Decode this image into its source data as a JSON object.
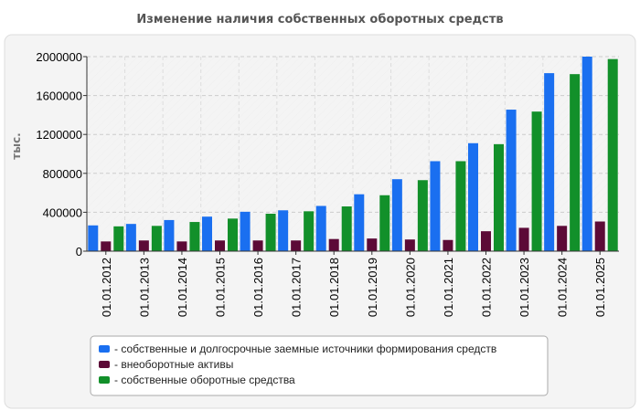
{
  "chart_data": {
    "type": "bar",
    "title": "Изменение наличия собственных оборотных средств",
    "xlabel": "",
    "ylabel": "тыс.",
    "ylim": [
      0,
      2000000
    ],
    "yticks": [
      "0",
      "400000",
      "800000",
      "1200000",
      "1600000",
      "2000000"
    ],
    "grid": true,
    "legend_position": "bottom",
    "categories": [
      "01.01.2012",
      "01.01.2013",
      "01.01.2014",
      "01.01.2015",
      "01.01.2016",
      "01.01.2017",
      "01.01.2018",
      "01.01.2019",
      "01.01.2020",
      "01.01.2021",
      "01.01.2022",
      "01.01.2023",
      "01.01.2024",
      "01.01.2025"
    ],
    "series": [
      {
        "name": "- собственные и долгосрочные заемные источники формирования средств",
        "color": "#1a6ff0",
        "values": [
          265000,
          280000,
          320000,
          355000,
          405000,
          420000,
          465000,
          585000,
          740000,
          925000,
          1110000,
          1455000,
          1830000,
          2000000
        ]
      },
      {
        "name": "- внеоборотные активы",
        "color": "#5c0a37",
        "values": [
          100000,
          110000,
          100000,
          110000,
          110000,
          110000,
          125000,
          130000,
          120000,
          115000,
          205000,
          240000,
          260000,
          305000
        ]
      },
      {
        "name": "- собственные оборотные средства",
        "color": "#12902a",
        "values": [
          255000,
          260000,
          300000,
          335000,
          385000,
          410000,
          460000,
          575000,
          730000,
          925000,
          1100000,
          1435000,
          1820000,
          1975000
        ]
      }
    ]
  }
}
